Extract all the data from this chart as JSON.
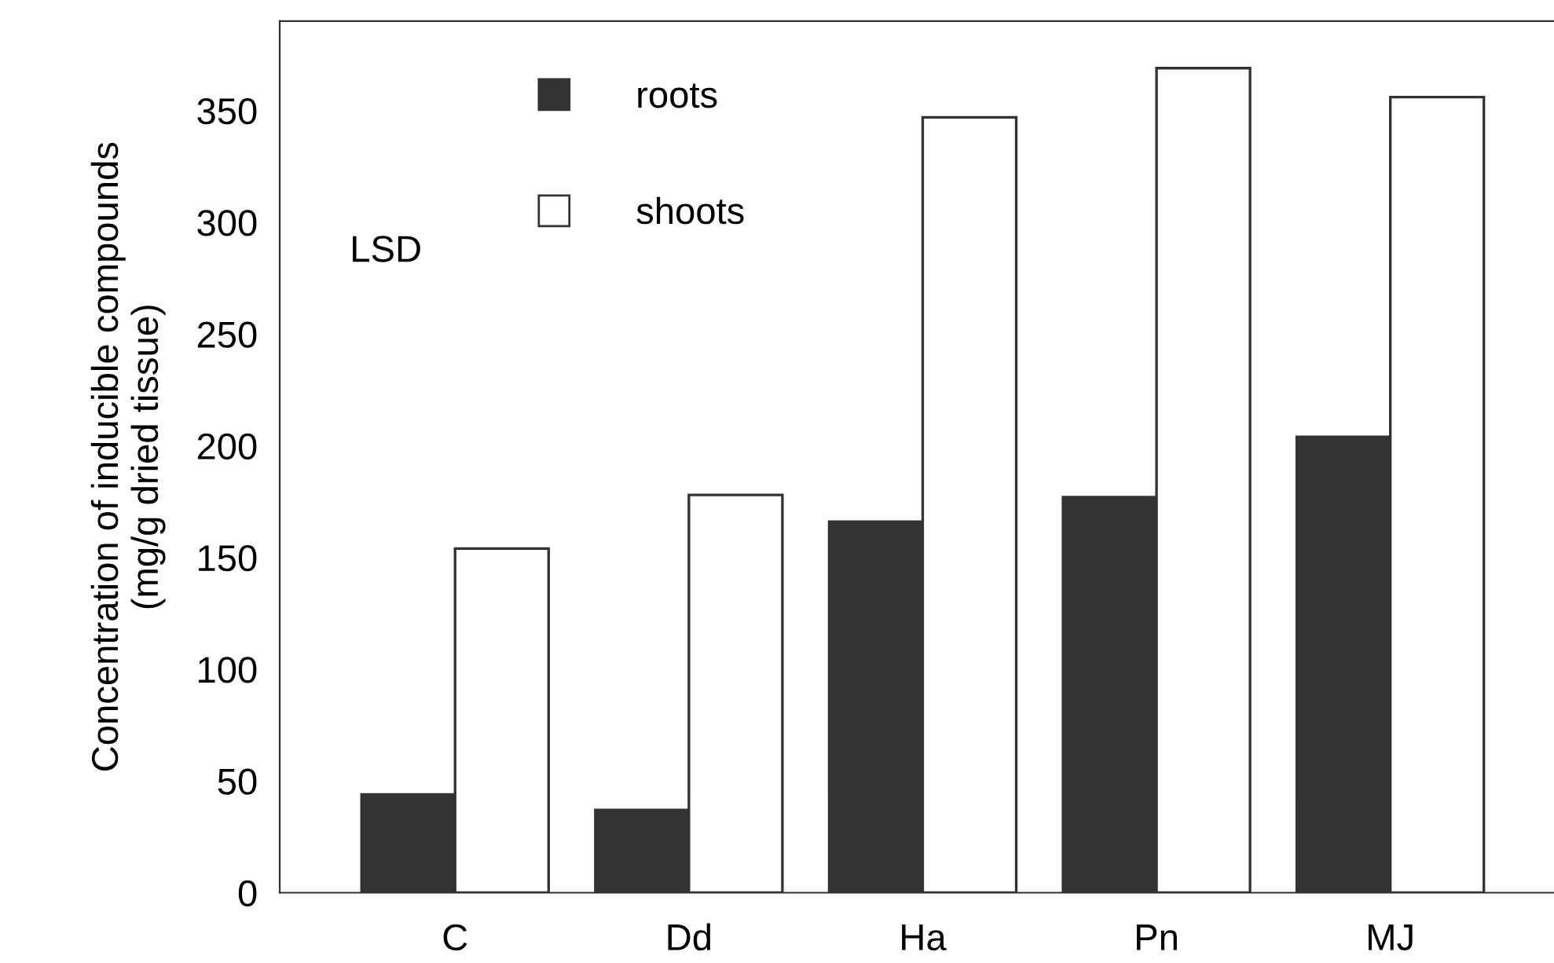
{
  "chart_data": {
    "type": "bar",
    "ylabel": "Concentration of inducible compounds\n(mg/g dried tissue)",
    "categories": [
      "C",
      "Dd",
      "Ha",
      "Pn",
      "MJ"
    ],
    "series": [
      {
        "name": "roots",
        "color": "#333333",
        "values": [
          44,
          37,
          166,
          177,
          204
        ]
      },
      {
        "name": "shoots",
        "color": "#ffffff",
        "values": [
          154,
          178,
          347,
          369,
          356
        ]
      }
    ],
    "ylim": [
      0,
      390
    ],
    "yticks": [
      0,
      50,
      100,
      150,
      200,
      250,
      300,
      350
    ],
    "legend": "top left",
    "legend_title": "LSD",
    "grid": false
  }
}
